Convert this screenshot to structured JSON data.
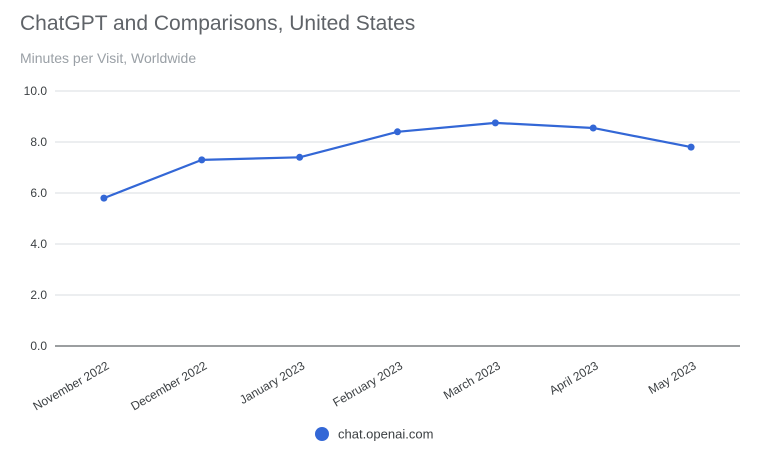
{
  "chart_data": {
    "type": "line",
    "title": "ChatGPT and Comparisons, United States",
    "subtitle": "Minutes per Visit, Worldwide",
    "xlabel": "",
    "ylabel": "",
    "categories": [
      "November 2022",
      "December 2022",
      "January 2023",
      "February 2023",
      "March 2023",
      "April 2023",
      "May 2023"
    ],
    "y_ticks": [
      "0.0",
      "2.0",
      "4.0",
      "6.0",
      "8.0",
      "10.0"
    ],
    "ylim": [
      0,
      10
    ],
    "grid": true,
    "legend_position": "bottom",
    "series": [
      {
        "name": "chat.openai.com",
        "color": "#3367d6",
        "values": [
          5.8,
          7.3,
          7.4,
          8.4,
          8.75,
          8.55,
          7.8
        ]
      }
    ]
  }
}
